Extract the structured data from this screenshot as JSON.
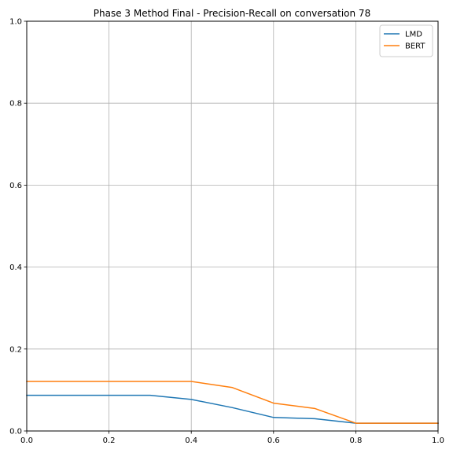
{
  "chart_data": {
    "type": "line",
    "title": "Phase 3 Method Final - Precision-Recall on conversation 78",
    "xlabel": "",
    "ylabel": "",
    "xlim": [
      0.0,
      1.0
    ],
    "ylim": [
      0.0,
      1.0
    ],
    "x_ticks": [
      "0.0",
      "0.2",
      "0.4",
      "0.6",
      "0.8",
      "1.0"
    ],
    "y_ticks": [
      "0.0",
      "0.2",
      "0.4",
      "0.6",
      "0.8",
      "1.0"
    ],
    "grid": true,
    "legend_position": "top-right",
    "series": [
      {
        "name": "LMD",
        "color": "#1f77b4",
        "x": [
          0.0,
          0.1,
          0.2,
          0.3,
          0.4,
          0.5,
          0.6,
          0.7,
          0.8,
          0.9,
          1.0
        ],
        "y": [
          0.087,
          0.087,
          0.087,
          0.087,
          0.077,
          0.057,
          0.033,
          0.03,
          0.019,
          0.019,
          0.019
        ]
      },
      {
        "name": "BERT",
        "color": "#ff7f0e",
        "x": [
          0.0,
          0.1,
          0.2,
          0.3,
          0.4,
          0.5,
          0.6,
          0.7,
          0.8,
          0.9,
          1.0
        ],
        "y": [
          0.121,
          0.121,
          0.121,
          0.121,
          0.121,
          0.106,
          0.068,
          0.055,
          0.019,
          0.019,
          0.019
        ]
      }
    ]
  }
}
